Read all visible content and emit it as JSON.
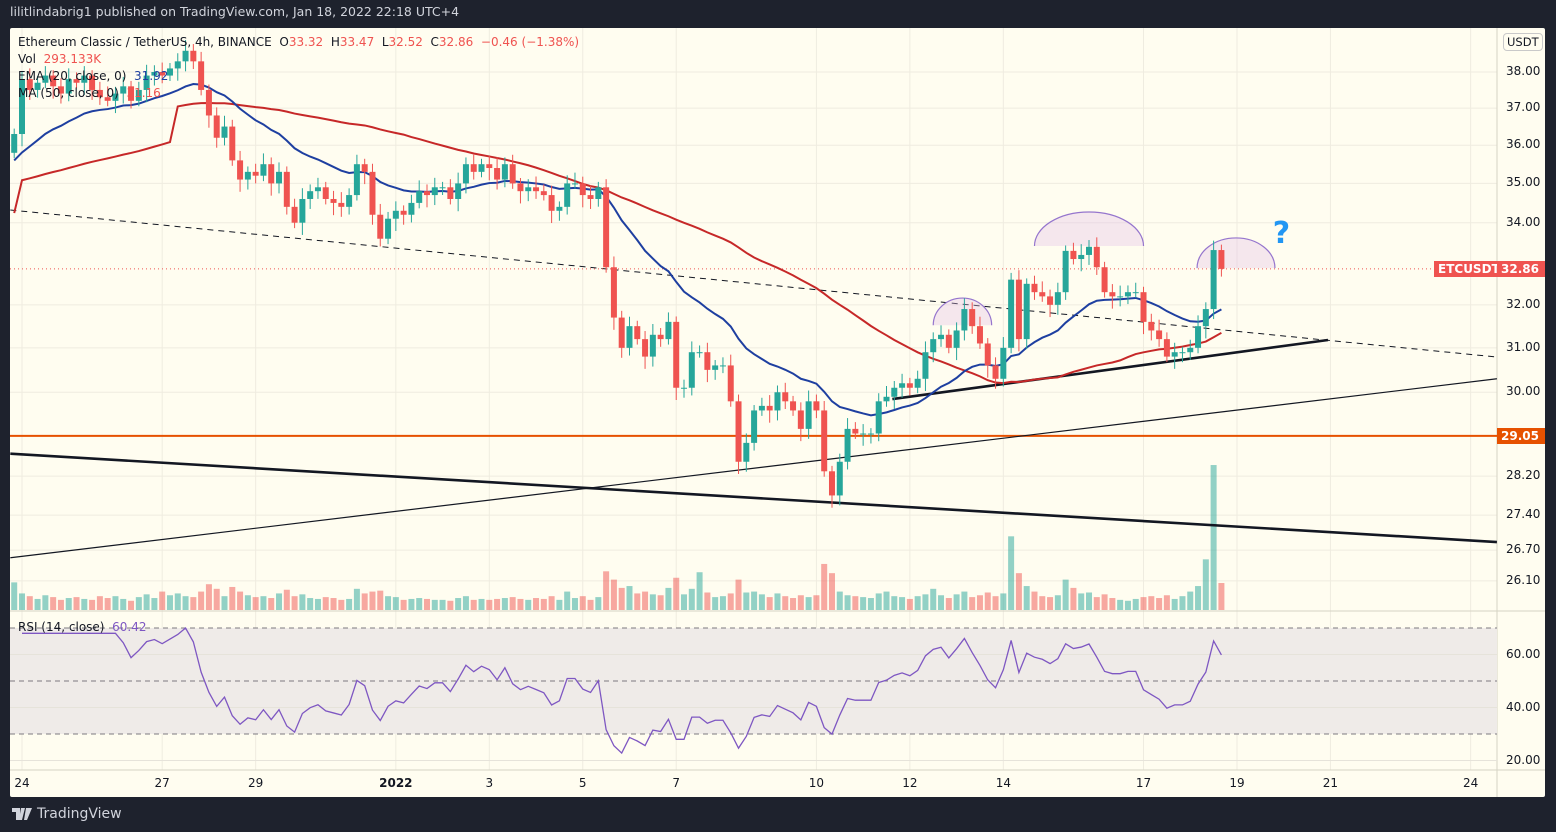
{
  "header": {
    "published_text": "lilitlindabrig1 published on TradingView.com, Jan 18, 2022 22:18 UTC+4"
  },
  "legend": {
    "symbol": "Ethereum Classic / TetherUS, 4h, BINANCE",
    "open_label": "O",
    "open": "33.32",
    "high_label": "H",
    "high": "33.47",
    "low_label": "L",
    "low": "32.52",
    "close_label": "C",
    "close": "32.86",
    "change": "−0.46 (−1.38%)",
    "vol_label": "Vol",
    "vol_value": "293.133K",
    "ema_label": "EMA (20, close, 0)",
    "ema_value": "31.92",
    "ma_label": "MA (50, close, 0)",
    "ma_value": "31.16",
    "rsi_label": "RSI (14, close)",
    "rsi_value": "60.42"
  },
  "price_axis": {
    "currency": "USDT",
    "ticks": [
      "38.00",
      "37.00",
      "36.00",
      "35.00",
      "34.00",
      "32.00",
      "31.00",
      "30.00",
      "28.20",
      "27.40",
      "26.70",
      "26.10"
    ]
  },
  "rsi_axis": {
    "ticks": [
      "60.00",
      "40.00",
      "20.00"
    ],
    "upper_band": 70,
    "middle": 50,
    "lower_band": 30
  },
  "time_axis": {
    "ticks": [
      {
        "label": "24",
        "date": "2021-12-24"
      },
      {
        "label": "27",
        "date": "2021-12-27"
      },
      {
        "label": "29",
        "date": "2021-12-29"
      },
      {
        "label": "2022",
        "date": "2022-01-01",
        "bold": true
      },
      {
        "label": "3",
        "date": "2022-01-03"
      },
      {
        "label": "5",
        "date": "2022-01-05"
      },
      {
        "label": "7",
        "date": "2022-01-07"
      },
      {
        "label": "10",
        "date": "2022-01-10"
      },
      {
        "label": "12",
        "date": "2022-01-12"
      },
      {
        "label": "14",
        "date": "2022-01-14"
      },
      {
        "label": "17",
        "date": "2022-01-17"
      },
      {
        "label": "19",
        "date": "2022-01-19"
      },
      {
        "label": "21",
        "date": "2022-01-21"
      },
      {
        "label": "24",
        "date": "2022-01-24"
      }
    ]
  },
  "badges": {
    "symbol": "ETCUSDT",
    "last_price": "32.86",
    "level": "29.05"
  },
  "footer": {
    "brand": "TradingView"
  },
  "colors": {
    "up": "#26a69a",
    "down": "#ef5350",
    "ema": "#1e3fa0",
    "ma": "#c62828",
    "rsi": "#7e57c2",
    "level": "#e65100",
    "background": "#fffdf0",
    "annotation": "#2196f3"
  },
  "chart_data": {
    "type": "candlestick",
    "title": "Ethereum Classic / TetherUS, 4h, BINANCE",
    "interval_hours": 4,
    "first_bar": "2021-12-23T20:00",
    "y_scale": "log",
    "ylim": [
      25.8,
      38.6
    ],
    "grid": true,
    "closes": [
      36.3,
      37.8,
      37.5,
      37.7,
      37.9,
      37.6,
      37.4,
      37.8,
      37.7,
      37.9,
      37.5,
      37.3,
      37.2,
      37.4,
      37.6,
      37.2,
      37.5,
      37.9,
      38.0,
      37.9,
      38.1,
      38.3,
      38.6,
      38.3,
      37.5,
      36.8,
      36.2,
      36.5,
      35.6,
      35.1,
      35.3,
      35.2,
      35.5,
      35.0,
      35.3,
      34.4,
      34.0,
      34.6,
      34.8,
      34.9,
      34.6,
      34.5,
      34.4,
      34.7,
      35.5,
      35.3,
      34.2,
      33.6,
      34.1,
      34.3,
      34.2,
      34.5,
      34.8,
      34.7,
      34.9,
      34.9,
      34.6,
      35.0,
      35.5,
      35.3,
      35.5,
      35.4,
      35.1,
      35.5,
      35.0,
      34.8,
      34.9,
      34.8,
      34.7,
      34.3,
      34.4,
      35.0,
      35.0,
      34.7,
      34.6,
      34.9,
      32.9,
      31.7,
      31.0,
      31.5,
      31.2,
      30.8,
      31.3,
      31.2,
      31.6,
      30.1,
      30.1,
      30.9,
      30.9,
      30.5,
      30.6,
      30.6,
      29.8,
      28.5,
      28.9,
      29.6,
      29.7,
      29.6,
      30.0,
      29.8,
      29.6,
      29.2,
      29.8,
      29.6,
      28.3,
      27.8,
      28.5,
      29.2,
      29.1,
      29.1,
      29.1,
      29.8,
      29.9,
      30.1,
      30.2,
      30.1,
      30.3,
      30.9,
      31.2,
      31.3,
      31.0,
      31.4,
      31.9,
      31.5,
      31.1,
      30.6,
      30.3,
      31.0,
      32.6,
      31.2,
      32.5,
      32.3,
      32.2,
      32.0,
      32.3,
      33.3,
      33.1,
      33.2,
      33.4,
      32.9,
      32.3,
      32.2,
      32.2,
      32.3,
      32.3,
      31.6,
      31.4,
      31.2,
      30.8,
      30.9,
      30.9,
      31.0,
      31.5,
      31.9,
      33.32,
      32.86
    ],
    "volumes_k": [
      300,
      180,
      150,
      120,
      160,
      140,
      110,
      130,
      140,
      120,
      110,
      150,
      130,
      150,
      120,
      100,
      140,
      170,
      130,
      200,
      160,
      180,
      150,
      140,
      200,
      280,
      230,
      150,
      250,
      200,
      160,
      140,
      150,
      130,
      180,
      220,
      150,
      170,
      130,
      120,
      140,
      130,
      110,
      120,
      230,
      180,
      200,
      210,
      150,
      140,
      110,
      120,
      130,
      120,
      110,
      110,
      100,
      130,
      150,
      110,
      120,
      110,
      120,
      130,
      140,
      120,
      110,
      130,
      120,
      150,
      110,
      200,
      130,
      150,
      110,
      140,
      420,
      330,
      240,
      260,
      180,
      200,
      170,
      160,
      240,
      350,
      170,
      230,
      410,
      190,
      140,
      150,
      180,
      330,
      190,
      200,
      170,
      140,
      180,
      150,
      130,
      160,
      140,
      160,
      500,
      400,
      200,
      160,
      150,
      140,
      130,
      180,
      200,
      150,
      140,
      120,
      150,
      170,
      230,
      160,
      130,
      170,
      200,
      140,
      160,
      190,
      150,
      180,
      800,
      400,
      260,
      200,
      150,
      140,
      160,
      330,
      240,
      180,
      190,
      140,
      170,
      130,
      110,
      100,
      120,
      140,
      150,
      130,
      160,
      120,
      150,
      200,
      260,
      550,
      1574,
      293
    ],
    "horizontal_levels": [
      29.05
    ],
    "drawings": [
      {
        "kind": "dashed-line",
        "from": {
          "date": "2021-12-23T18:00",
          "price": 34.32
        },
        "to": {
          "date": "2022-01-24T13:30",
          "price": 30.79
        }
      },
      {
        "kind": "thin-line",
        "from": {
          "date": "2021-12-23T18:00",
          "price": 26.55
        },
        "to": {
          "date": "2022-01-24T13:30",
          "price": 30.3
        }
      },
      {
        "kind": "thick-line",
        "from": {
          "date": "2021-12-23T18:00",
          "price": 28.67
        },
        "to": {
          "date": "2022-01-24T13:30",
          "price": 26.86
        }
      },
      {
        "kind": "thick-line",
        "from": {
          "date": "2022-01-11T15:00",
          "price": 29.85
        },
        "to": {
          "date": "2022-01-20T22:45",
          "price": 31.18
        }
      },
      {
        "kind": "arc",
        "from": "2022-01-12T12:00",
        "to": "2022-01-13T18:00",
        "base": 31.52,
        "top": 32.16
      },
      {
        "kind": "arc",
        "from": "2022-01-14T16:00",
        "to": "2022-01-17T00:00",
        "base": 33.42,
        "top": 34.27
      },
      {
        "kind": "arc",
        "from": "2022-01-18T03:30",
        "to": "2022-01-19T19:30",
        "base": 32.88,
        "top": 33.62
      }
    ],
    "annotation": {
      "text": "?",
      "date": "2022-01-19T22:30",
      "price": 33.57
    }
  }
}
